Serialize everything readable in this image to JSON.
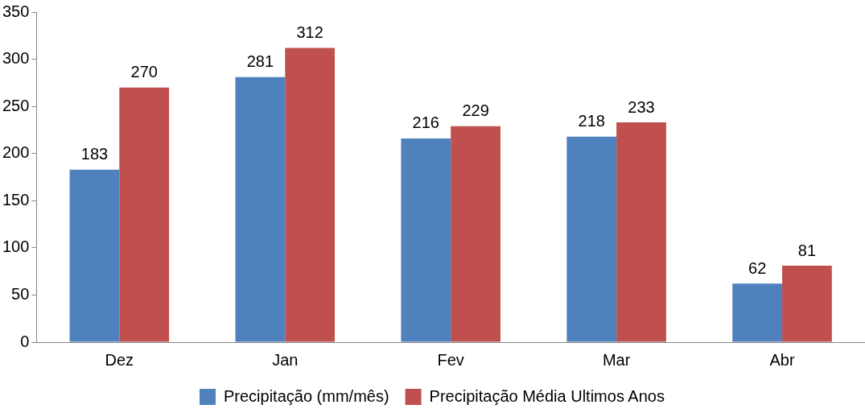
{
  "chart_data": {
    "type": "bar",
    "categories": [
      "Dez",
      "Jan",
      "Fev",
      "Mar",
      "Abr"
    ],
    "series": [
      {
        "name": "Precipitação (mm/mês)",
        "color": "#4f81bd",
        "values": [
          183,
          281,
          216,
          218,
          62
        ]
      },
      {
        "name": "Precipitação Média Ultimos Anos",
        "color": "#c0504d",
        "values": [
          270,
          312,
          229,
          233,
          81
        ]
      }
    ],
    "ylim": [
      0,
      350
    ],
    "yticks": [
      0,
      50,
      100,
      150,
      200,
      250,
      300,
      350
    ],
    "grid": false,
    "legend": "bottom",
    "data_labels": true
  }
}
